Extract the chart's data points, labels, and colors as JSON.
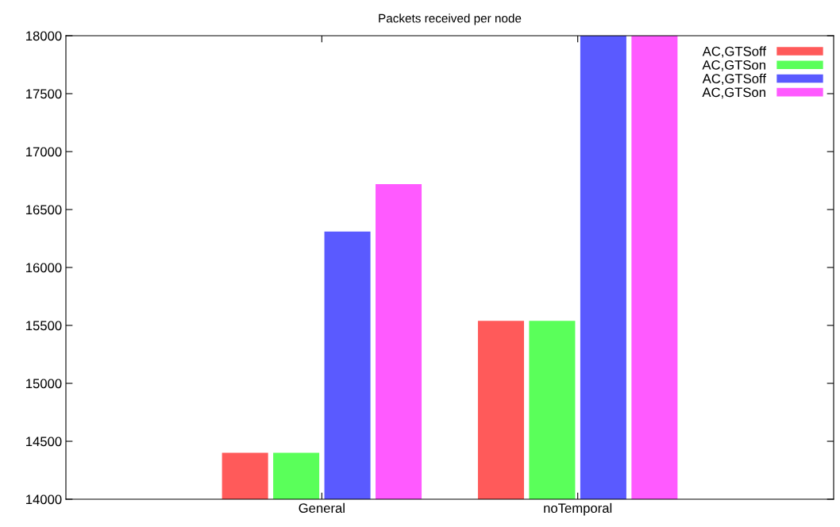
{
  "chart_data": {
    "type": "bar",
    "title": "Packets received per node",
    "categories": [
      "General",
      "noTemporal"
    ],
    "series": [
      {
        "name": "AC,GTSoff",
        "color": "#ff5a5a",
        "values": [
          14400,
          15540
        ]
      },
      {
        "name": "AC,GTSon",
        "color": "#5aff5a",
        "values": [
          14400,
          15540
        ]
      },
      {
        "name": "AC,GTSoff",
        "color": "#5a5aff",
        "values": [
          16310,
          18000
        ]
      },
      {
        "name": "AC,GTSon",
        "color": "#ff5aff",
        "values": [
          16720,
          18000
        ]
      }
    ],
    "ylim": [
      14000,
      18000
    ],
    "yticks": [
      14000,
      14500,
      15000,
      15500,
      16000,
      16500,
      17000,
      17500,
      18000
    ],
    "grid": false,
    "legend": "top right"
  }
}
